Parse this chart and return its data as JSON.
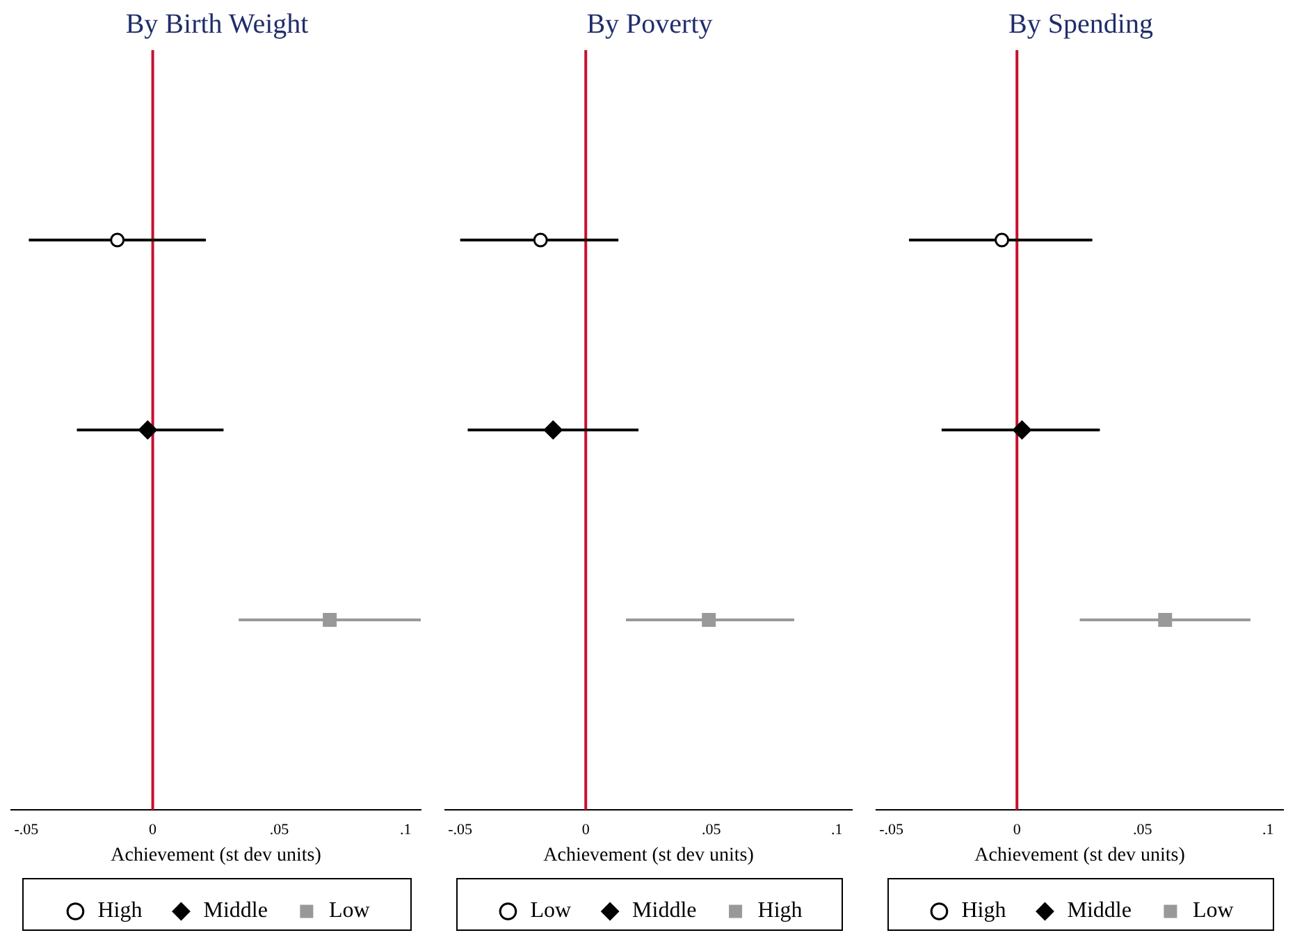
{
  "chart_data": [
    {
      "type": "scatter",
      "title": "By Birth Weight",
      "xlabel": "Achievement (st dev units)",
      "orientation": "horizontal",
      "categories": [
        null,
        null,
        null
      ],
      "tick_labels": "x",
      "legend": "bottom",
      "xlim": [
        -0.056,
        0.106
      ],
      "xticks": [
        {
          "value": -0.05,
          "label": "-.05"
        },
        {
          "value": 0,
          "label": "0"
        },
        {
          "value": 0.05,
          "label": ".05"
        },
        {
          "value": 0.1,
          "label": ".1"
        }
      ],
      "ref_lines": [
        {
          "axis": "x",
          "value": 0,
          "color": "#c8102e"
        }
      ],
      "series": [
        {
          "name": "High",
          "color": "#000000",
          "marker": "circle",
          "values": [
            -0.014,
            null,
            null
          ],
          "errors": [
            [
              -0.049,
              0.021
            ],
            null,
            null
          ]
        },
        {
          "name": "Middle",
          "color": "#000000",
          "marker": "diamond",
          "values": [
            null,
            -0.002,
            null
          ],
          "errors": [
            null,
            [
              -0.03,
              0.028
            ],
            null
          ]
        },
        {
          "name": "Low",
          "color": "#999999",
          "marker": "square",
          "values": [
            null,
            null,
            0.07
          ],
          "errors": [
            null,
            null,
            [
              0.034,
              0.106
            ]
          ]
        }
      ]
    },
    {
      "type": "scatter",
      "title": "By Poverty",
      "xlabel": "Achievement (st dev units)",
      "orientation": "horizontal",
      "categories": [
        null,
        null,
        null
      ],
      "tick_labels": "x",
      "legend": "bottom",
      "xlim": [
        -0.056,
        0.106
      ],
      "xticks": [
        {
          "value": -0.05,
          "label": "-.05"
        },
        {
          "value": 0,
          "label": "0"
        },
        {
          "value": 0.05,
          "label": ".05"
        },
        {
          "value": 0.1,
          "label": ".1"
        }
      ],
      "ref_lines": [
        {
          "axis": "x",
          "value": 0,
          "color": "#c8102e"
        }
      ],
      "series": [
        {
          "name": "Low",
          "color": "#000000",
          "marker": "circle",
          "values": [
            -0.018,
            null,
            null
          ],
          "errors": [
            [
              -0.05,
              0.013
            ],
            null,
            null
          ]
        },
        {
          "name": "Middle",
          "color": "#000000",
          "marker": "diamond",
          "values": [
            null,
            -0.013,
            null
          ],
          "errors": [
            null,
            [
              -0.047,
              0.021
            ],
            null
          ]
        },
        {
          "name": "High",
          "color": "#999999",
          "marker": "square",
          "values": [
            null,
            null,
            0.049
          ],
          "errors": [
            null,
            null,
            [
              0.016,
              0.083
            ]
          ]
        }
      ]
    },
    {
      "type": "scatter",
      "title": "By Spending",
      "xlabel": "Achievement (st dev units)",
      "orientation": "horizontal",
      "categories": [
        null,
        null,
        null
      ],
      "tick_labels": "x",
      "legend": "bottom",
      "xlim": [
        -0.056,
        0.106
      ],
      "xticks": [
        {
          "value": -0.05,
          "label": "-.05"
        },
        {
          "value": 0,
          "label": "0"
        },
        {
          "value": 0.05,
          "label": ".05"
        },
        {
          "value": 0.1,
          "label": ".1"
        }
      ],
      "ref_lines": [
        {
          "axis": "x",
          "value": 0,
          "color": "#c8102e"
        }
      ],
      "series": [
        {
          "name": "High",
          "color": "#000000",
          "marker": "circle",
          "values": [
            -0.006,
            null,
            null
          ],
          "errors": [
            [
              -0.043,
              0.03
            ],
            null,
            null
          ]
        },
        {
          "name": "Middle",
          "color": "#000000",
          "marker": "diamond",
          "values": [
            null,
            0.002,
            null
          ],
          "errors": [
            null,
            [
              -0.03,
              0.033
            ],
            null
          ]
        },
        {
          "name": "Low",
          "color": "#999999",
          "marker": "square",
          "values": [
            null,
            null,
            0.059
          ],
          "errors": [
            null,
            null,
            [
              0.025,
              0.093
            ]
          ]
        }
      ]
    }
  ]
}
